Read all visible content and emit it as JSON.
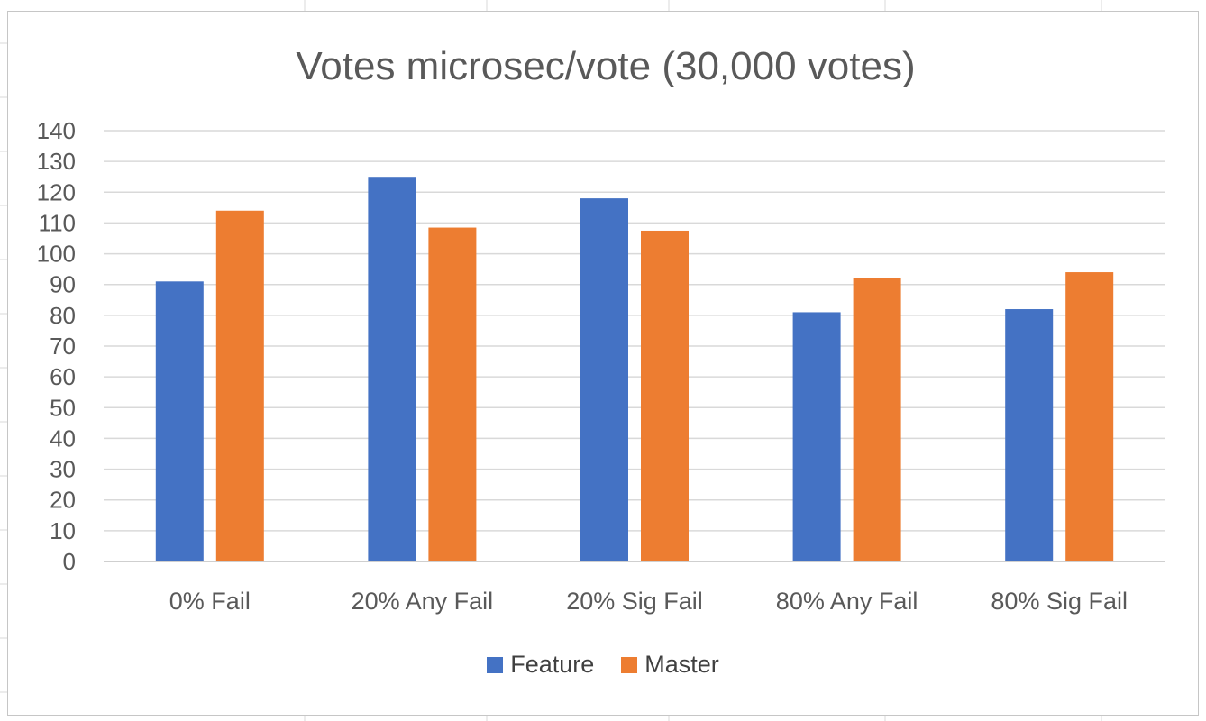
{
  "chart_data": {
    "type": "bar",
    "title": "Votes microsec/vote (30,000 votes)",
    "xlabel": "",
    "ylabel": "",
    "ylim": [
      0,
      140
    ],
    "ytick_step": 10,
    "grid": true,
    "legend_position": "bottom",
    "categories": [
      "0% Fail",
      "20% Any Fail",
      "20% Sig Fail",
      "80% Any Fail",
      "80% Sig Fail"
    ],
    "series": [
      {
        "name": "Feature",
        "color": "#4472C4",
        "values": [
          91,
          125,
          118,
          81,
          82
        ]
      },
      {
        "name": "Master",
        "color": "#ED7D31",
        "values": [
          114,
          108.5,
          107.5,
          92,
          94
        ]
      }
    ]
  }
}
